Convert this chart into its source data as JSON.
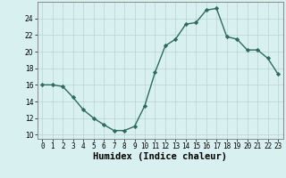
{
  "x": [
    0,
    1,
    2,
    3,
    4,
    5,
    6,
    7,
    8,
    9,
    10,
    11,
    12,
    13,
    14,
    15,
    16,
    17,
    18,
    19,
    20,
    21,
    22,
    23
  ],
  "y": [
    16,
    16,
    15.8,
    14.5,
    13,
    12,
    11.2,
    10.5,
    10.5,
    11,
    13.5,
    17.5,
    20.7,
    21.5,
    23.3,
    23.5,
    25.0,
    25.2,
    21.8,
    21.5,
    20.2,
    20.2,
    19.2,
    17.3
  ],
  "xlabel": "Humidex (Indice chaleur)",
  "xlim": [
    -0.5,
    23.5
  ],
  "ylim": [
    9.5,
    26.0
  ],
  "yticks": [
    10,
    12,
    14,
    16,
    18,
    20,
    22,
    24
  ],
  "xticks": [
    0,
    1,
    2,
    3,
    4,
    5,
    6,
    7,
    8,
    9,
    10,
    11,
    12,
    13,
    14,
    15,
    16,
    17,
    18,
    19,
    20,
    21,
    22,
    23
  ],
  "line_color": "#2e6b5e",
  "marker": "D",
  "marker_size": 2.2,
  "bg_color": "#d8f0f0",
  "grid_color": "#b8d4d4",
  "line_width": 1.0,
  "tick_fontsize": 5.5,
  "xlabel_fontsize": 7.5
}
